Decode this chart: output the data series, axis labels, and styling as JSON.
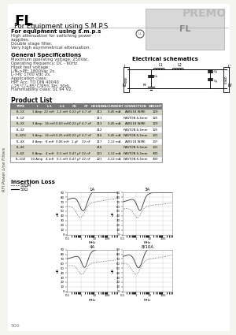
{
  "title": "FL",
  "subtitle": "For Equipment using S.M.P.S",
  "brand": "PREMO",
  "sidebar_text": "RFI Power Line Filters",
  "section1_title": "For equipment using s.m.p.s",
  "section1_lines": [
    "High attenuation for switching power",
    "supplies.",
    "Double stage filter.",
    "Very high asymmetrical attenuation."
  ],
  "section2_title": "General Specifications",
  "section2_lines": [
    "Maximum operating voltage: 250Vac.",
    "Operating frequency: DC - 60Hz.",
    "Hipot test voltage:",
    "L/N->PE: 1800Vac 2s.",
    "L->N: 1700 Vdc 2s.",
    "Application class:",
    "HPF Acc. TO DIN 40040",
    "(-25°C/+85°C/95% RH, 30d).",
    "Flammability class: UL 94 V2."
  ],
  "schematic_title": "Electrical schematics",
  "table_title": "Product List",
  "table_headers": [
    "TYPE",
    "I",
    "L-1",
    "L-2",
    "CX",
    "CY",
    "HOUSING",
    "L.CURRENT",
    "CONNECTION",
    "WEIGHT"
  ],
  "table_rows": [
    [
      "FL-1X",
      "1 Amp",
      "22 mH",
      "1,2 mH",
      "0,22 μF",
      "4,7 nF",
      "211",
      "0,45 mA",
      "AWG18 WIRE",
      "129"
    ],
    [
      "FL-1Z",
      "",
      "",
      "",
      "",
      "",
      "211",
      "",
      "FASTON 6,3mm",
      "125"
    ],
    [
      "FL-3X",
      "3 Amp",
      "16 mH",
      "0,03 mH",
      "0,22 μF",
      "4,7 nF",
      "213",
      "0,45 mA",
      "AWG18 WIRE",
      "129"
    ],
    [
      "FL-3Z",
      "",
      "",
      "",
      "",
      "",
      "212",
      "",
      "FASTON 6,3mm",
      "125"
    ],
    [
      "FL-3ZH",
      "3 Amp",
      "16 mH",
      "0,25 mH",
      "0,22 μF",
      "4,7 nF",
      "216",
      "0,45 mA",
      "FASTON 6,3mm",
      "131"
    ],
    [
      "FL-4X",
      "4 Amp",
      "8 mH",
      "0,06 mH",
      "1 μF",
      "22 nF",
      "217",
      "2,12 mA",
      "AWG18 WIRE",
      "137"
    ],
    [
      "FL-4Z",
      "",
      "",
      "",
      "",
      "",
      "216",
      "",
      "FASTON 6,3mm",
      "131"
    ],
    [
      "FL-6Z",
      "6 Amp",
      "4 mH",
      "0,1 mH",
      "0,47 μF",
      "22 nF",
      "221",
      "2,12 mA",
      "FASTON 6,3mm",
      "300"
    ],
    [
      "FL-10Z",
      "10 Amp",
      "4 mH",
      "0,1 mH",
      "0,47 μF",
      "22 nF",
      "221",
      "2,12 mA",
      "FASTON 6,3mm",
      "300"
    ]
  ],
  "highlighted_rows": [
    0,
    2,
    4,
    6,
    7
  ],
  "insertion_loss_title": "Insertion Loss",
  "legend_dotted": "50ΩM",
  "legend_solid": "50Ω",
  "plots": [
    {
      "title": "1A",
      "xlabel": "MHz"
    },
    {
      "title": "3A",
      "xlabel": "MHz"
    },
    {
      "title": "4A",
      "xlabel": "MHz"
    },
    {
      "title": "8/10A",
      "xlabel": "MHz"
    }
  ],
  "bg_color": "#f5f5f0",
  "page_number": "500"
}
